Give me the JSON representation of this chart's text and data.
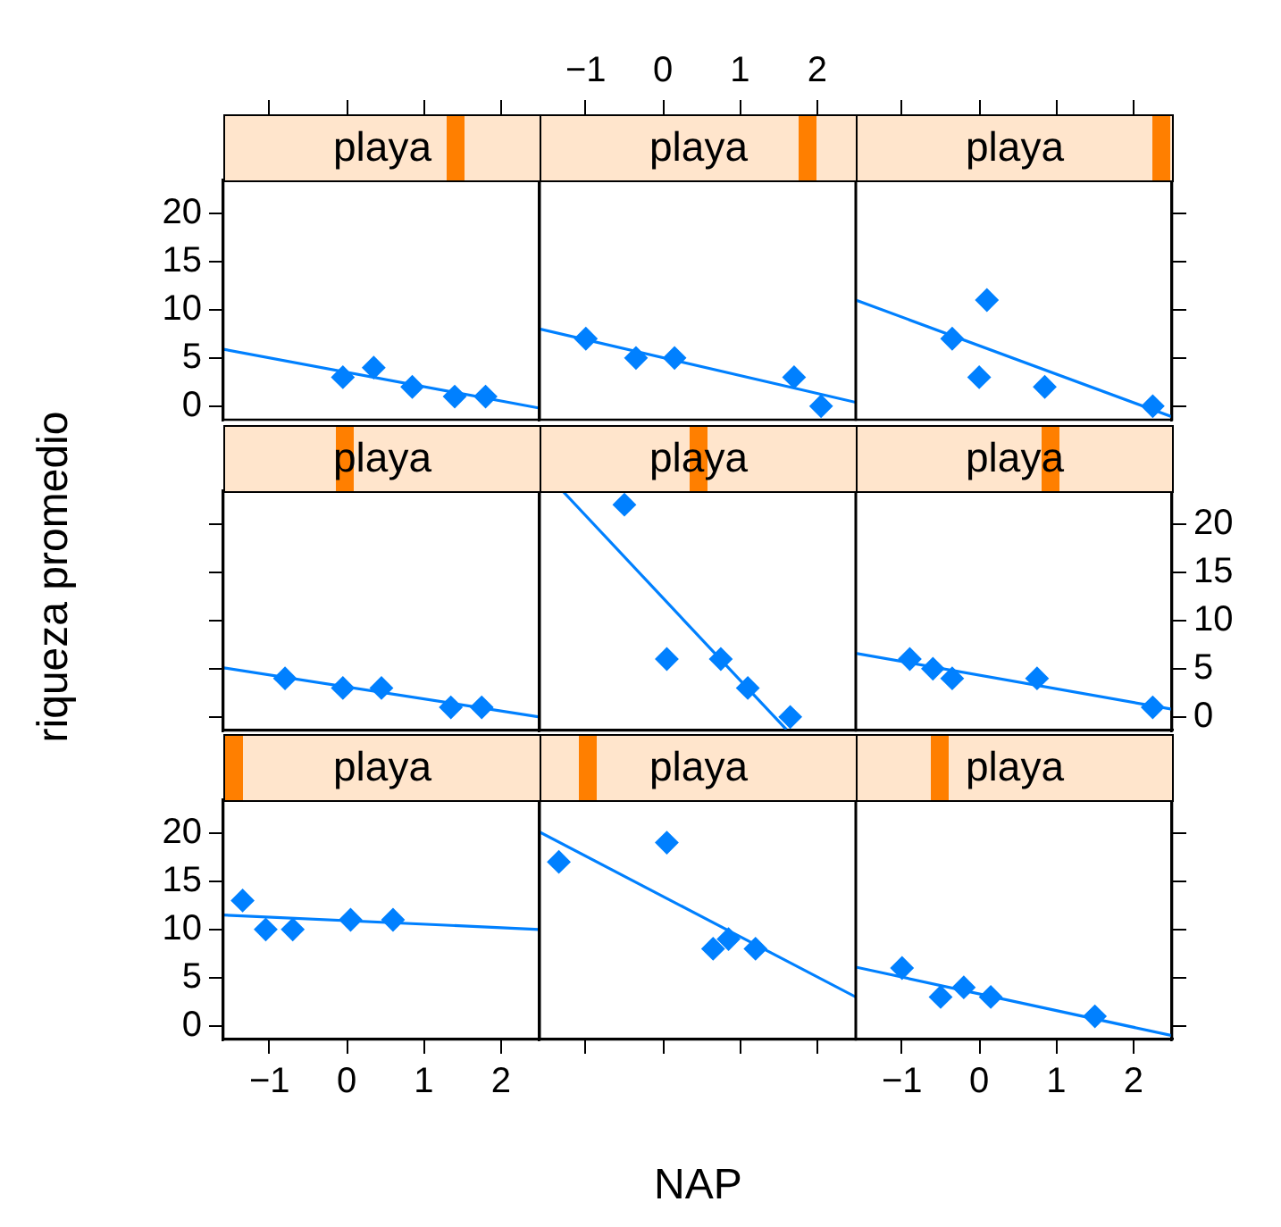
{
  "chart_data": [
    {
      "type": "scatter",
      "title": "playa",
      "xlim": [
        -1.6,
        2.5
      ],
      "ylim": [
        -1.4,
        23.4
      ],
      "xticks": [
        -1,
        0,
        1,
        2
      ],
      "yticks": [
        0,
        5,
        10,
        15,
        20
      ],
      "tick_labels": "y",
      "series": [
        {
          "type": "scatter",
          "marker": "diamond",
          "color": "#0080ff",
          "x": [
            -0.05,
            0.35,
            0.85,
            1.4,
            1.8
          ],
          "values": [
            3,
            4,
            2,
            1,
            1
          ]
        },
        {
          "type": "line",
          "color": "#0080ff",
          "x": [
            -1.6,
            2.5
          ],
          "values": [
            5.9,
            -0.2
          ]
        }
      ]
    },
    {
      "type": "scatter",
      "title": "playa",
      "xlim": [
        -1.6,
        2.5
      ],
      "ylim": [
        -1.4,
        23.4
      ],
      "xticks": [
        -1,
        0,
        1,
        2
      ],
      "tick_labels": "x",
      "series": [
        {
          "type": "scatter",
          "marker": "diamond",
          "color": "#0080ff",
          "x": [
            -1,
            -0.35,
            0.15,
            1.7,
            2.05
          ],
          "values": [
            7,
            5,
            5,
            3,
            0
          ]
        },
        {
          "type": "line",
          "color": "#0080ff",
          "x": [
            -1.6,
            2.5
          ],
          "values": [
            8,
            0.4
          ]
        }
      ]
    },
    {
      "type": "scatter",
      "title": "playa",
      "xlim": [
        -1.6,
        2.5
      ],
      "ylim": [
        -1.4,
        23.4
      ],
      "xticks": [
        -1,
        0,
        1,
        2
      ],
      "yticks": [
        0,
        5,
        10,
        15,
        20
      ],
      "tick_labels": false,
      "series": [
        {
          "type": "scatter",
          "marker": "diamond",
          "color": "#0080ff",
          "x": [
            -0.35,
            0.1,
            0,
            0.85,
            2.25
          ],
          "values": [
            7,
            11,
            3,
            2,
            0
          ]
        },
        {
          "type": "line",
          "color": "#0080ff",
          "x": [
            -1.6,
            2.5
          ],
          "values": [
            11,
            -1.1
          ]
        }
      ]
    },
    {
      "type": "scatter",
      "title": "playa",
      "ylabel": "riqueza promedio",
      "xlim": [
        -1.6,
        2.5
      ],
      "ylim": [
        -1.4,
        23.4
      ],
      "yticks": [
        0,
        5,
        10,
        15,
        20
      ],
      "tick_labels": false,
      "series": [
        {
          "type": "scatter",
          "marker": "diamond",
          "color": "#0080ff",
          "x": [
            -0.8,
            -0.05,
            0.45,
            1.35,
            1.75
          ],
          "values": [
            4,
            3,
            3,
            1,
            1
          ]
        },
        {
          "type": "line",
          "color": "#0080ff",
          "x": [
            -1.6,
            2.5
          ],
          "values": [
            5.1,
            0
          ]
        }
      ]
    },
    {
      "type": "scatter",
      "title": "playa",
      "xlim": [
        -1.6,
        2.5
      ],
      "ylim": [
        -1.4,
        23.4
      ],
      "tick_labels": false,
      "series": [
        {
          "type": "scatter",
          "marker": "diamond",
          "color": "#0080ff",
          "x": [
            -0.5,
            0.05,
            0.75,
            1.1,
            1.65
          ],
          "values": [
            22,
            6,
            6,
            3,
            0
          ]
        },
        {
          "type": "line",
          "color": "#0080ff",
          "x": [
            -1.3,
            1.6
          ],
          "values": [
            23.4,
            -1.3
          ]
        }
      ]
    },
    {
      "type": "scatter",
      "title": "playa",
      "xlim": [
        -1.6,
        2.5
      ],
      "ylim": [
        -1.4,
        23.4
      ],
      "yticks": [
        0,
        5,
        10,
        15,
        20
      ],
      "tick_labels": "y",
      "series": [
        {
          "type": "scatter",
          "marker": "diamond",
          "color": "#0080ff",
          "x": [
            -0.9,
            -0.6,
            -0.35,
            0.75,
            2.25
          ],
          "values": [
            6,
            5,
            4,
            4,
            1
          ]
        },
        {
          "type": "line",
          "color": "#0080ff",
          "x": [
            -1.6,
            2.5
          ],
          "values": [
            6.6,
            0.8
          ]
        }
      ]
    },
    {
      "type": "scatter",
      "title": "playa",
      "xlim": [
        -1.6,
        2.5
      ],
      "ylim": [
        -1.4,
        23.4
      ],
      "xticks": [
        -1,
        0,
        1,
        2
      ],
      "yticks": [
        0,
        5,
        10,
        15,
        20
      ],
      "series": [
        {
          "type": "scatter",
          "marker": "diamond",
          "color": "#0080ff",
          "x": [
            -1.35,
            -1.05,
            -0.7,
            0.05,
            0.6
          ],
          "values": [
            13,
            10,
            10,
            11,
            11
          ]
        },
        {
          "type": "line",
          "color": "#0080ff",
          "x": [
            -1.6,
            2.5
          ],
          "values": [
            11.5,
            10
          ]
        }
      ]
    },
    {
      "type": "scatter",
      "title": "playa",
      "xlabel": "NAP",
      "xlim": [
        -1.6,
        2.5
      ],
      "ylim": [
        -1.4,
        23.4
      ],
      "xticks": [
        -1,
        0,
        1,
        2
      ],
      "tick_labels": false,
      "series": [
        {
          "type": "scatter",
          "marker": "diamond",
          "color": "#0080ff",
          "x": [
            -1.35,
            0.05,
            0.65,
            0.85,
            1.2
          ],
          "values": [
            17,
            19,
            8,
            9,
            8
          ]
        },
        {
          "type": "line",
          "color": "#0080ff",
          "x": [
            -1.6,
            2.5
          ],
          "values": [
            20.1,
            3
          ]
        }
      ]
    },
    {
      "type": "scatter",
      "title": "playa",
      "xlim": [
        -1.6,
        2.5
      ],
      "ylim": [
        -1.4,
        23.4
      ],
      "xticks": [
        -1,
        0,
        1,
        2
      ],
      "yticks": [
        0,
        5,
        10,
        15,
        20
      ],
      "tick_labels": "x",
      "series": [
        {
          "type": "scatter",
          "marker": "diamond",
          "color": "#0080ff",
          "x": [
            -1,
            -0.5,
            -0.2,
            0.15,
            1.5
          ],
          "values": [
            6,
            3,
            4,
            3,
            1
          ]
        },
        {
          "type": "line",
          "color": "#0080ff",
          "x": [
            -1.6,
            2.5
          ],
          "values": [
            6.1,
            -1
          ]
        }
      ]
    }
  ]
}
